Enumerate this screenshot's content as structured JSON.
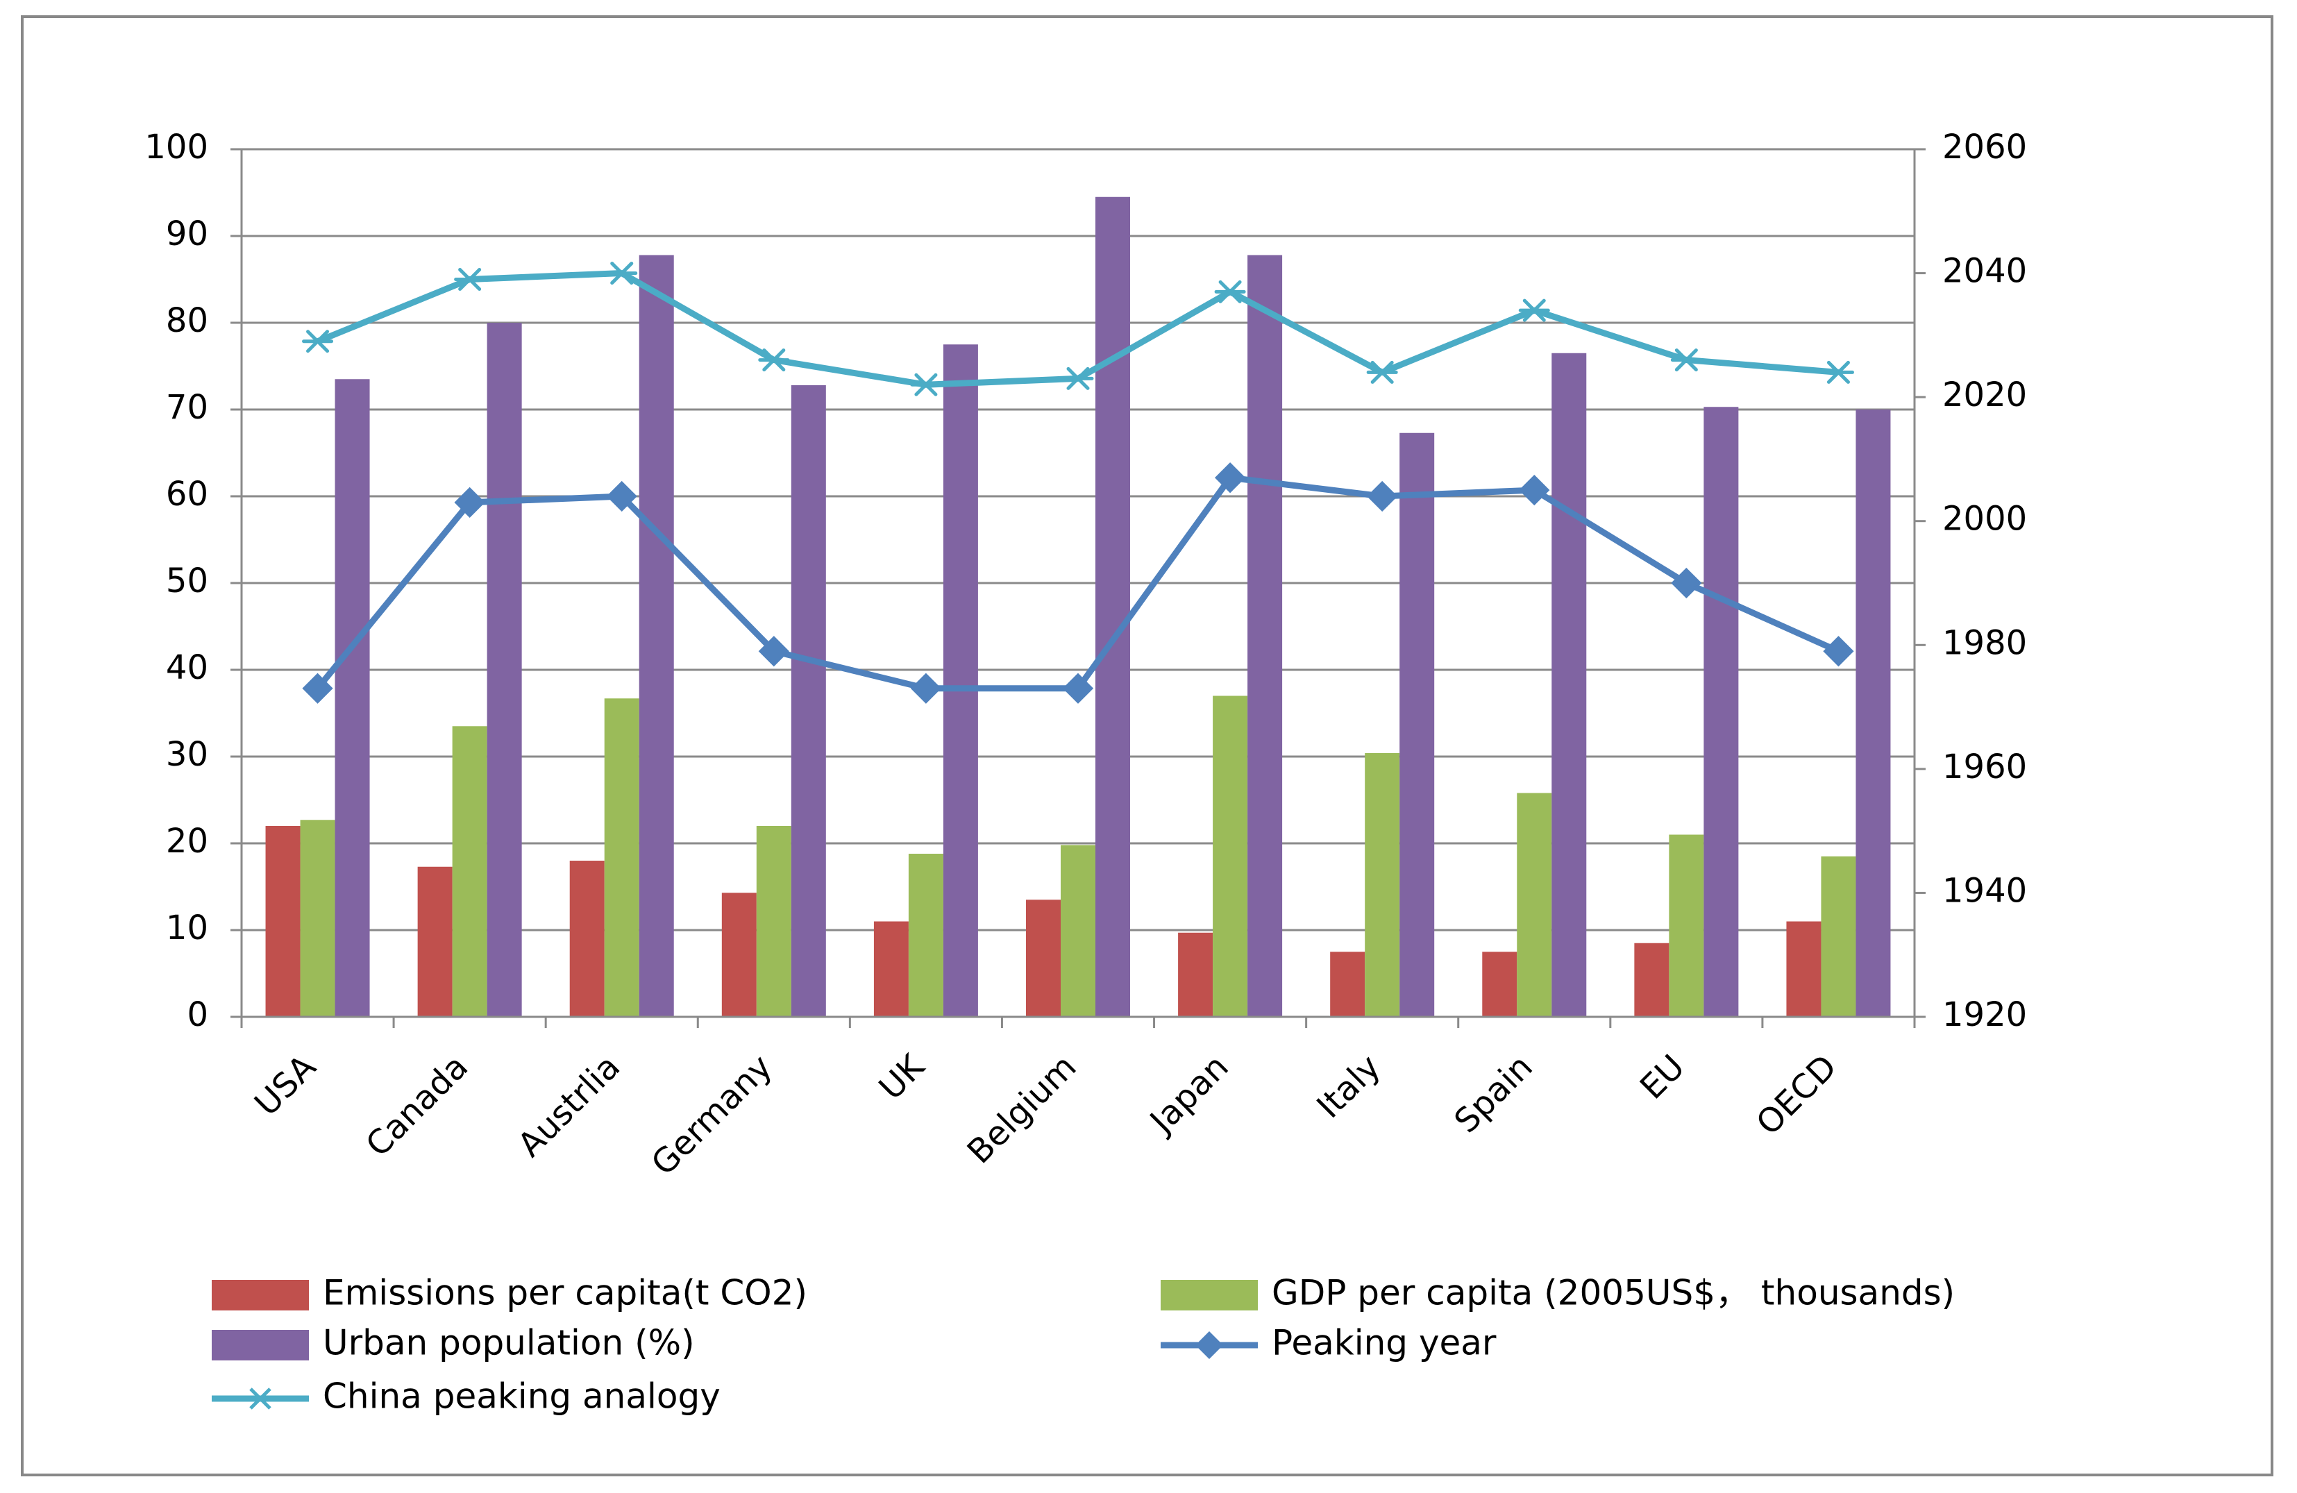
{
  "chart_data": {
    "type": "bar",
    "categories": [
      "USA",
      "Canada",
      "Austrlia",
      "Germany",
      "UK",
      "Belgium",
      "Japan",
      "Italy",
      "Spain",
      "EU",
      "OECD"
    ],
    "series": [
      {
        "name": "Emissions per capita(t CO2)",
        "kind": "bar",
        "axis": "left",
        "color": "#c0504d",
        "values": [
          22,
          17.3,
          18,
          14.3,
          11,
          13.5,
          9.7,
          7.5,
          7.5,
          8.5,
          11
        ]
      },
      {
        "name": "GDP per capita (2005US$， thousands)",
        "kind": "bar",
        "axis": "left",
        "color": "#9bbb59",
        "values": [
          22.7,
          33.5,
          36.7,
          22,
          18.8,
          19.8,
          37,
          30.4,
          25.8,
          21,
          18.5
        ]
      },
      {
        "name": "Urban population (%)",
        "kind": "bar",
        "axis": "left",
        "color": "#8064a2",
        "values": [
          73.5,
          80,
          87.8,
          72.8,
          77.5,
          94.5,
          87.8,
          67.3,
          76.5,
          70.3,
          70
        ]
      },
      {
        "name": "Peaking year",
        "kind": "line",
        "axis": "right",
        "color": "#4f81bd",
        "marker": "diamond",
        "values": [
          1973,
          2003,
          2004,
          1979,
          1973,
          1973,
          2007,
          2004,
          2005,
          1990,
          1979
        ]
      },
      {
        "name": "China peaking analogy",
        "kind": "line",
        "axis": "right",
        "color": "#4bacc6",
        "marker": "asterisk",
        "values": [
          2029,
          2039,
          2040,
          2026,
          2022,
          2023,
          2037,
          2024,
          2034,
          2026,
          2024
        ]
      }
    ],
    "y_left": {
      "ylim": [
        0,
        100
      ],
      "ticks": [
        0,
        10,
        20,
        30,
        40,
        50,
        60,
        70,
        80,
        90,
        100
      ]
    },
    "y_right": {
      "ylim": [
        1920,
        2060
      ],
      "ticks": [
        1920,
        1940,
        1960,
        1980,
        2000,
        2020,
        2040,
        2060
      ]
    },
    "title": "",
    "xlabel": "",
    "ylabel": "",
    "grid": true,
    "legend_position": "bottom"
  }
}
